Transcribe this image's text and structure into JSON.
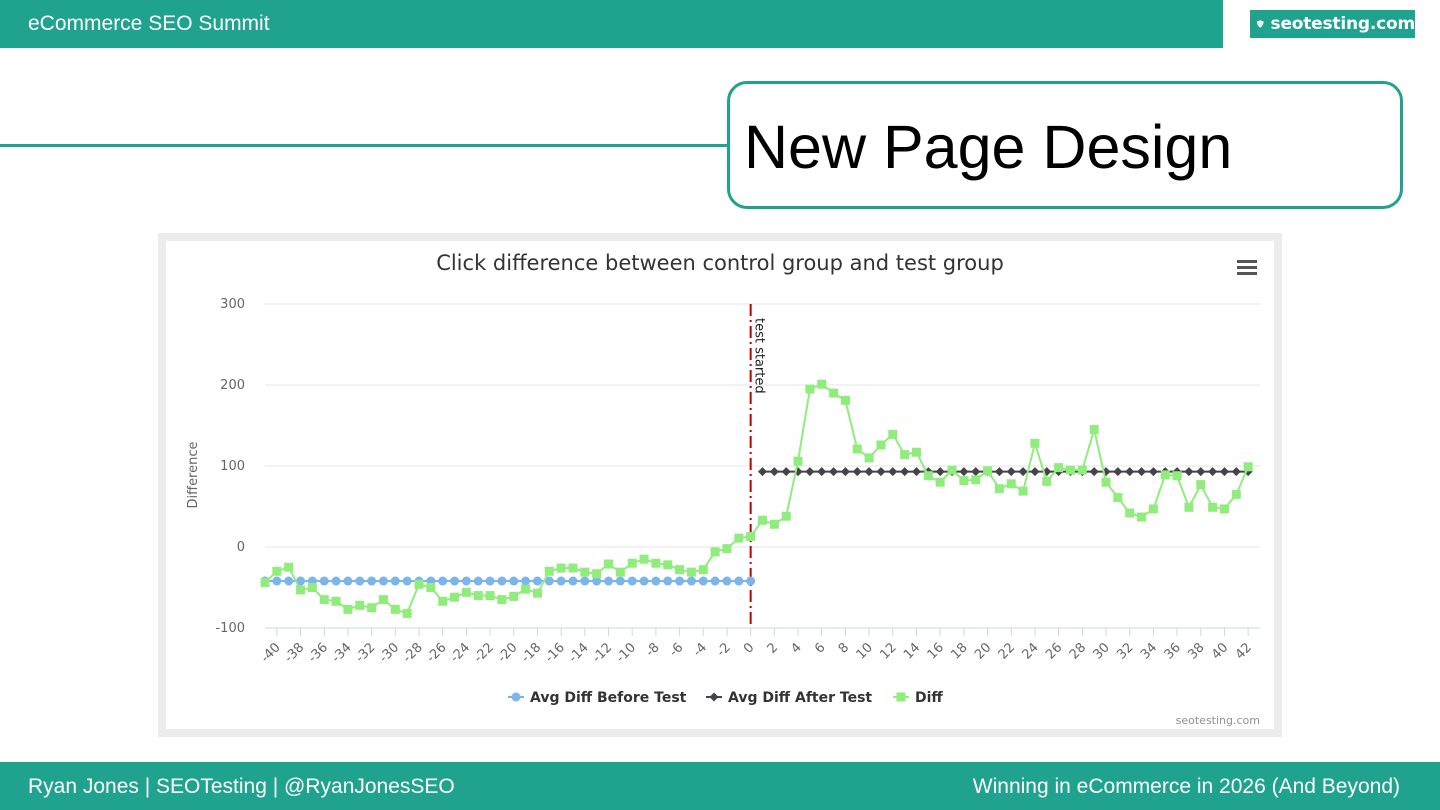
{
  "header": {
    "title": "eCommerce SEO Summit"
  },
  "logo": {
    "text": "seotesting.com",
    "icon": "shield-icon"
  },
  "slide": {
    "title": "New Page Design"
  },
  "footer": {
    "left": "Ryan Jones | SEOTesting | @RyanJonesSEO",
    "right": "Winning in eCommerce in 2026 (And Beyond)"
  },
  "colors": {
    "brand": "#1fa38e",
    "before_series": "#7cb5ec",
    "after_series": "#434348",
    "diff_series": "#90ed7d",
    "test_line": "#c00000"
  },
  "chart_data": {
    "type": "line",
    "title": "Click difference between control group and test group",
    "ylabel": "Difference",
    "xlabel": "",
    "ylim": [
      -100,
      300
    ],
    "yticks": [
      -100,
      0,
      100,
      200,
      300
    ],
    "xlim": [
      -41,
      43
    ],
    "xticks": [
      -40,
      -38,
      -36,
      -34,
      -32,
      -30,
      -28,
      -26,
      -24,
      -22,
      -20,
      -18,
      -16,
      -14,
      -12,
      -10,
      -8,
      -6,
      -4,
      -2,
      0,
      2,
      4,
      6,
      8,
      10,
      12,
      14,
      16,
      18,
      20,
      22,
      24,
      26,
      28,
      30,
      32,
      34,
      36,
      38,
      40,
      42
    ],
    "grid": true,
    "legend_position": "bottom-center",
    "menu_icon": "hamburger-menu-icon",
    "credit": "seotesting.com",
    "plot_line": {
      "x": 0,
      "label": "test started"
    },
    "series": [
      {
        "name": "Avg Diff Before Test",
        "marker": "circle",
        "x": [
          -41,
          -40,
          -39,
          -38,
          -37,
          -36,
          -35,
          -34,
          -33,
          -32,
          -31,
          -30,
          -29,
          -28,
          -27,
          -26,
          -25,
          -24,
          -23,
          -22,
          -21,
          -20,
          -19,
          -18,
          -17,
          -16,
          -15,
          -14,
          -13,
          -12,
          -11,
          -10,
          -9,
          -8,
          -7,
          -6,
          -5,
          -4,
          -3,
          -2,
          -1,
          0
        ],
        "y": [
          -42,
          -42,
          -42,
          -42,
          -42,
          -42,
          -42,
          -42,
          -42,
          -42,
          -42,
          -42,
          -42,
          -42,
          -42,
          -42,
          -42,
          -42,
          -42,
          -42,
          -42,
          -42,
          -42,
          -42,
          -42,
          -42,
          -42,
          -42,
          -42,
          -42,
          -42,
          -42,
          -42,
          -42,
          -42,
          -42,
          -42,
          -42,
          -42,
          -42,
          -42,
          -42
        ]
      },
      {
        "name": "Avg Diff After Test",
        "marker": "diamond",
        "x": [
          1,
          2,
          3,
          4,
          5,
          6,
          7,
          8,
          9,
          10,
          11,
          12,
          13,
          14,
          15,
          16,
          17,
          18,
          19,
          20,
          21,
          22,
          23,
          24,
          25,
          26,
          27,
          28,
          29,
          30,
          31,
          32,
          33,
          34,
          35,
          36,
          37,
          38,
          39,
          40,
          41,
          42
        ],
        "y": [
          93,
          93,
          93,
          93,
          93,
          93,
          93,
          93,
          93,
          93,
          93,
          93,
          93,
          93,
          93,
          93,
          93,
          93,
          93,
          93,
          93,
          93,
          93,
          93,
          93,
          93,
          93,
          93,
          93,
          93,
          93,
          93,
          93,
          93,
          93,
          93,
          93,
          93,
          93,
          93,
          93,
          93
        ]
      },
      {
        "name": "Diff",
        "marker": "square",
        "x": [
          -41,
          -40,
          -39,
          -38,
          -37,
          -36,
          -35,
          -34,
          -33,
          -32,
          -31,
          -30,
          -29,
          -28,
          -27,
          -26,
          -25,
          -24,
          -23,
          -22,
          -21,
          -20,
          -19,
          -18,
          -17,
          -16,
          -15,
          -14,
          -13,
          -12,
          -11,
          -10,
          -9,
          -8,
          -7,
          -6,
          -5,
          -4,
          -3,
          -2,
          -1,
          0,
          1,
          2,
          3,
          4,
          5,
          6,
          7,
          8,
          9,
          10,
          11,
          12,
          13,
          14,
          15,
          16,
          17,
          18,
          19,
          20,
          21,
          22,
          23,
          24,
          25,
          26,
          27,
          28,
          29,
          30,
          31,
          32,
          33,
          34,
          35,
          36,
          37,
          38,
          39,
          40,
          41,
          42
        ],
        "y": [
          -44,
          -30,
          -25,
          -53,
          -50,
          -65,
          -67,
          -77,
          -72,
          -75,
          -65,
          -77,
          -82,
          -46,
          -50,
          -67,
          -62,
          -56,
          -60,
          -60,
          -65,
          -61,
          -52,
          -57,
          -30,
          -26,
          -26,
          -31,
          -33,
          -21,
          -31,
          -20,
          -15,
          -20,
          -22,
          -28,
          -31,
          -28,
          -6,
          -2,
          11,
          13,
          33,
          28,
          38,
          106,
          195,
          201,
          190,
          181,
          121,
          110,
          126,
          139,
          114,
          117,
          88,
          80,
          95,
          82,
          83,
          94,
          72,
          78,
          69,
          128,
          81,
          98,
          95,
          95,
          145,
          80,
          61,
          42,
          37,
          47,
          89,
          88,
          49,
          77,
          49,
          47,
          65,
          99
        ]
      }
    ]
  }
}
